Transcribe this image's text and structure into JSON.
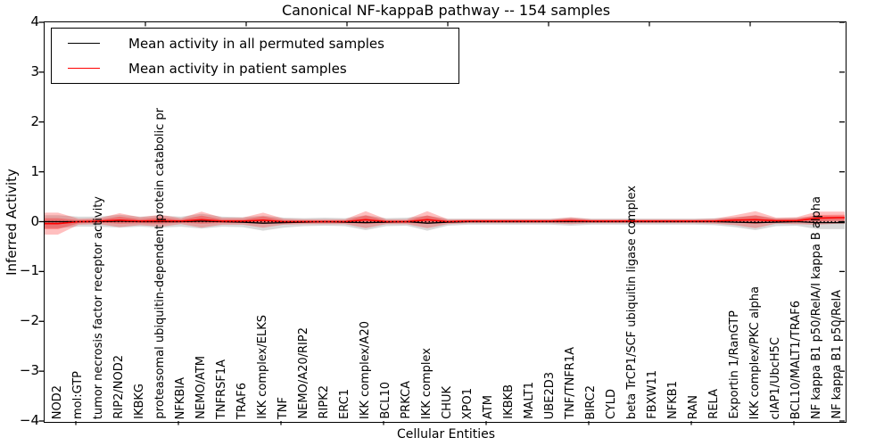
{
  "title": "Canonical NF-kappaB pathway -- 154 samples",
  "axes": {
    "x_label": "Cellular Entities",
    "y_label": "Inferred Activity"
  },
  "legend": {
    "items": [
      {
        "label": "Mean activity in all permuted samples",
        "color": "#000000"
      },
      {
        "label": "Mean activity in patient samples",
        "color": "#ff0000"
      }
    ],
    "position": "upper left"
  },
  "chart_data": {
    "type": "line",
    "title": "Canonical NF-kappaB pathway -- 154 samples",
    "xlabel": "Cellular Entities",
    "ylabel": "Inferred Activity",
    "ylim": [
      -4,
      4
    ],
    "yticks": [
      4,
      3,
      2,
      1,
      0,
      -1,
      -2,
      -3,
      -4
    ],
    "grid": false,
    "legend_position": "upper left",
    "zero_line": {
      "style": "dotted",
      "color": "#000000",
      "y": 0
    },
    "band_colors": {
      "permuted": "#aaaaaa",
      "patient": "#ff0000"
    },
    "categories": [
      "NOD2",
      "mol:GTP",
      "tumor necrosis factor receptor activity",
      "RIP2/NOD2",
      "IKBKG",
      "proteasomal ubiquitin-dependent protein catabolic pr",
      "NFKBIA",
      "NEMO/ATM",
      "TNFRSF1A",
      "TRAF6",
      "IKK complex/ELKS",
      "TNF",
      "NEMO/A20/RIP2",
      "RIPK2",
      "ERC1",
      "IKK complex/A20",
      "BCL10",
      "PRKCA",
      "IKK complex",
      "CHUK",
      "XPO1",
      "ATM",
      "IKBKB",
      "MALT1",
      "UBE2D3",
      "TNF/TNFR1A",
      "BIRC2",
      "CYLD",
      "beta TrCP1/SCF ubiquitin ligase complex",
      "FBXW11",
      "NFKB1",
      "RAN",
      "RELA",
      "Exportin 1/RanGTP",
      "IKK complex/PKC alpha",
      "cIAP1/UbcH5C",
      "BCL10/MALT1/TRAF6",
      "NF kappa B1 p50/RelA/I kappa B alpha",
      "NF kappa B1 p50/RelA"
    ],
    "series": [
      {
        "name": "Mean activity in all permuted samples",
        "color": "#000000",
        "style": "solid",
        "values": [
          0,
          0,
          0,
          0.01,
          0,
          0,
          0,
          0.01,
          0,
          -0.01,
          -0.03,
          -0.02,
          -0.01,
          0,
          -0.01,
          -0.02,
          -0.01,
          0,
          -0.03,
          -0.01,
          0,
          0,
          0,
          0,
          0,
          0,
          0,
          0,
          0,
          0,
          0,
          0,
          0,
          -0.01,
          -0.02,
          -0.01,
          0,
          -0.02,
          -0.02
        ]
      },
      {
        "name": "Mean activity in patient samples",
        "color": "#ff0000",
        "style": "solid",
        "values": [
          -0.04,
          0,
          0.01,
          0.03,
          0.01,
          0.02,
          0.01,
          0.04,
          0.01,
          0.01,
          0.03,
          0,
          0,
          0,
          0,
          0.04,
          0,
          0,
          0.04,
          0,
          0.01,
          0.01,
          0.01,
          0.01,
          0.01,
          0.02,
          0.01,
          0.01,
          0.01,
          0.01,
          0.01,
          0.01,
          0.01,
          0.03,
          0.04,
          0.02,
          0.02,
          0.07,
          0.08
        ]
      }
    ],
    "bands": [
      {
        "name": "permuted mean ± sd",
        "series": 0,
        "color": "#aaaaaa",
        "halfwidths": [
          0.13,
          0.1,
          0.1,
          0.13,
          0.1,
          0.12,
          0.1,
          0.15,
          0.1,
          0.1,
          0.15,
          0.1,
          0.08,
          0.08,
          0.08,
          0.15,
          0.08,
          0.08,
          0.15,
          0.07,
          0.06,
          0.06,
          0.06,
          0.06,
          0.06,
          0.08,
          0.06,
          0.06,
          0.06,
          0.06,
          0.06,
          0.06,
          0.07,
          0.1,
          0.15,
          0.08,
          0.08,
          0.13,
          0.13
        ]
      },
      {
        "name": "patient mean ± sd",
        "series": 1,
        "color": "#ff0000",
        "halfwidths": [
          0.22,
          0.06,
          0.06,
          0.14,
          0.08,
          0.12,
          0.06,
          0.16,
          0.07,
          0.07,
          0.15,
          0.06,
          0.05,
          0.05,
          0.05,
          0.17,
          0.05,
          0.05,
          0.17,
          0.05,
          0.04,
          0.04,
          0.04,
          0.04,
          0.04,
          0.07,
          0.04,
          0.04,
          0.04,
          0.04,
          0.04,
          0.04,
          0.05,
          0.1,
          0.17,
          0.06,
          0.07,
          0.13,
          0.12
        ]
      }
    ]
  }
}
